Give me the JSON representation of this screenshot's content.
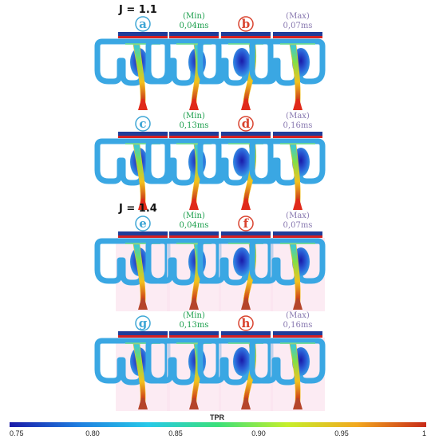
{
  "colors": {
    "circle_blue": "#3fa7d6",
    "circle_red": "#d9432f",
    "min_green": "#1a9e4b",
    "max_purple": "#8878b0",
    "bar_blue": "#1f3d9a",
    "bar_red": "#d62020"
  },
  "groups": [
    {
      "label": "J = 1.1",
      "rows": [
        {
          "panels": [
            {
              "type": "circle",
              "letter": "a",
              "color": "blue"
            },
            {
              "type": "time",
              "kind": "(Min)",
              "time": "0,04ms",
              "color": "green"
            },
            {
              "type": "circle",
              "letter": "b",
              "color": "red"
            },
            {
              "type": "time",
              "kind": "(Max)",
              "time": "0,07ms",
              "color": "purple"
            }
          ]
        },
        {
          "panels": [
            {
              "type": "circle",
              "letter": "c",
              "color": "blue"
            },
            {
              "type": "time",
              "kind": "(Min)",
              "time": "0,13ms",
              "color": "green"
            },
            {
              "type": "circle",
              "letter": "d",
              "color": "red"
            },
            {
              "type": "time",
              "kind": "(Max)",
              "time": "0,16ms",
              "color": "purple"
            }
          ]
        }
      ]
    },
    {
      "label": "J = 1.4",
      "rows": [
        {
          "panels": [
            {
              "type": "circle",
              "letter": "e",
              "color": "blue"
            },
            {
              "type": "time",
              "kind": "(Min)",
              "time": "0,04ms",
              "color": "green"
            },
            {
              "type": "circle",
              "letter": "f",
              "color": "red"
            },
            {
              "type": "time",
              "kind": "(Max)",
              "time": "0,07ms",
              "color": "purple"
            }
          ]
        },
        {
          "panels": [
            {
              "type": "circle",
              "letter": "g",
              "color": "blue"
            },
            {
              "type": "time",
              "kind": "(Min)",
              "time": "0,13ms",
              "color": "green"
            },
            {
              "type": "circle",
              "letter": "h",
              "color": "red"
            },
            {
              "type": "time",
              "kind": "(Max)",
              "time": "0,16ms",
              "color": "purple"
            }
          ]
        }
      ]
    }
  ],
  "colorbar": {
    "title": "TPR",
    "ticks": [
      "0.75",
      "0.80",
      "0.85",
      "0.90",
      "0.95",
      "1"
    ],
    "stops": [
      "#1a1aa8",
      "#1f7fe0",
      "#27c9e8",
      "#3be07a",
      "#c6ef2b",
      "#f2a81f",
      "#c82a18"
    ]
  }
}
